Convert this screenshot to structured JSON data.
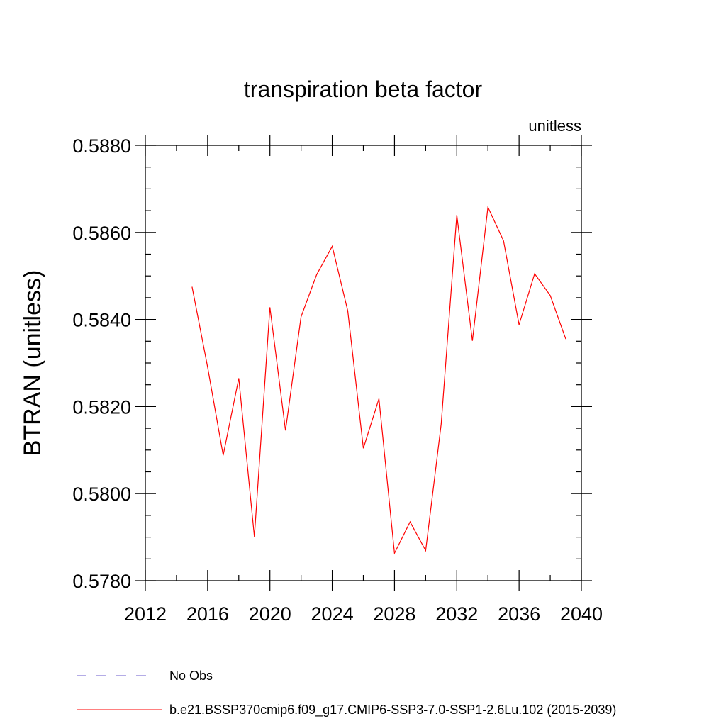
{
  "chart_data": {
    "type": "line",
    "title": "transpiration beta factor",
    "units_label": "unitless",
    "ylabel": "BTRAN  (unitless)",
    "xlabel": "",
    "xlim": [
      2012,
      2040
    ],
    "ylim": [
      0.578,
      0.588
    ],
    "x_ticks": [
      2012,
      2016,
      2020,
      2024,
      2028,
      2032,
      2036,
      2040
    ],
    "y_ticks": [
      0.578,
      0.58,
      0.582,
      0.584,
      0.586,
      0.588
    ],
    "y_tick_labels": [
      "0.5780",
      "0.5800",
      "0.5820",
      "0.5840",
      "0.5860",
      "0.5880"
    ],
    "x_minor_step": 2,
    "y_minor_step": 0.0005,
    "grid": false,
    "legend_position": "bottom",
    "series": [
      {
        "name": "b.e21.BSSP370cmip6.f09_g17.CMIP6-SSP3-7.0-SSP1-2.6Lu.102 (2015-2039)",
        "color": "#ff0000",
        "style": "solid",
        "x": [
          2015,
          2016,
          2017,
          2018,
          2019,
          2020,
          2021,
          2022,
          2023,
          2024,
          2025,
          2026,
          2027,
          2028,
          2029,
          2030,
          2031,
          2032,
          2033,
          2034,
          2035,
          2036,
          2037,
          2038,
          2039
        ],
        "y": [
          0.58475,
          0.5829,
          0.58088,
          0.58265,
          0.57901,
          0.58428,
          0.58145,
          0.58406,
          0.58503,
          0.58568,
          0.5842,
          0.58104,
          0.58218,
          0.57863,
          0.57935,
          0.57869,
          0.5816,
          0.5864,
          0.58351,
          0.58658,
          0.58581,
          0.58388,
          0.58505,
          0.58455,
          0.58355
        ]
      }
    ],
    "obs_series": {
      "name": "No Obs",
      "color": "#6a5acd",
      "style": "dashed"
    }
  }
}
